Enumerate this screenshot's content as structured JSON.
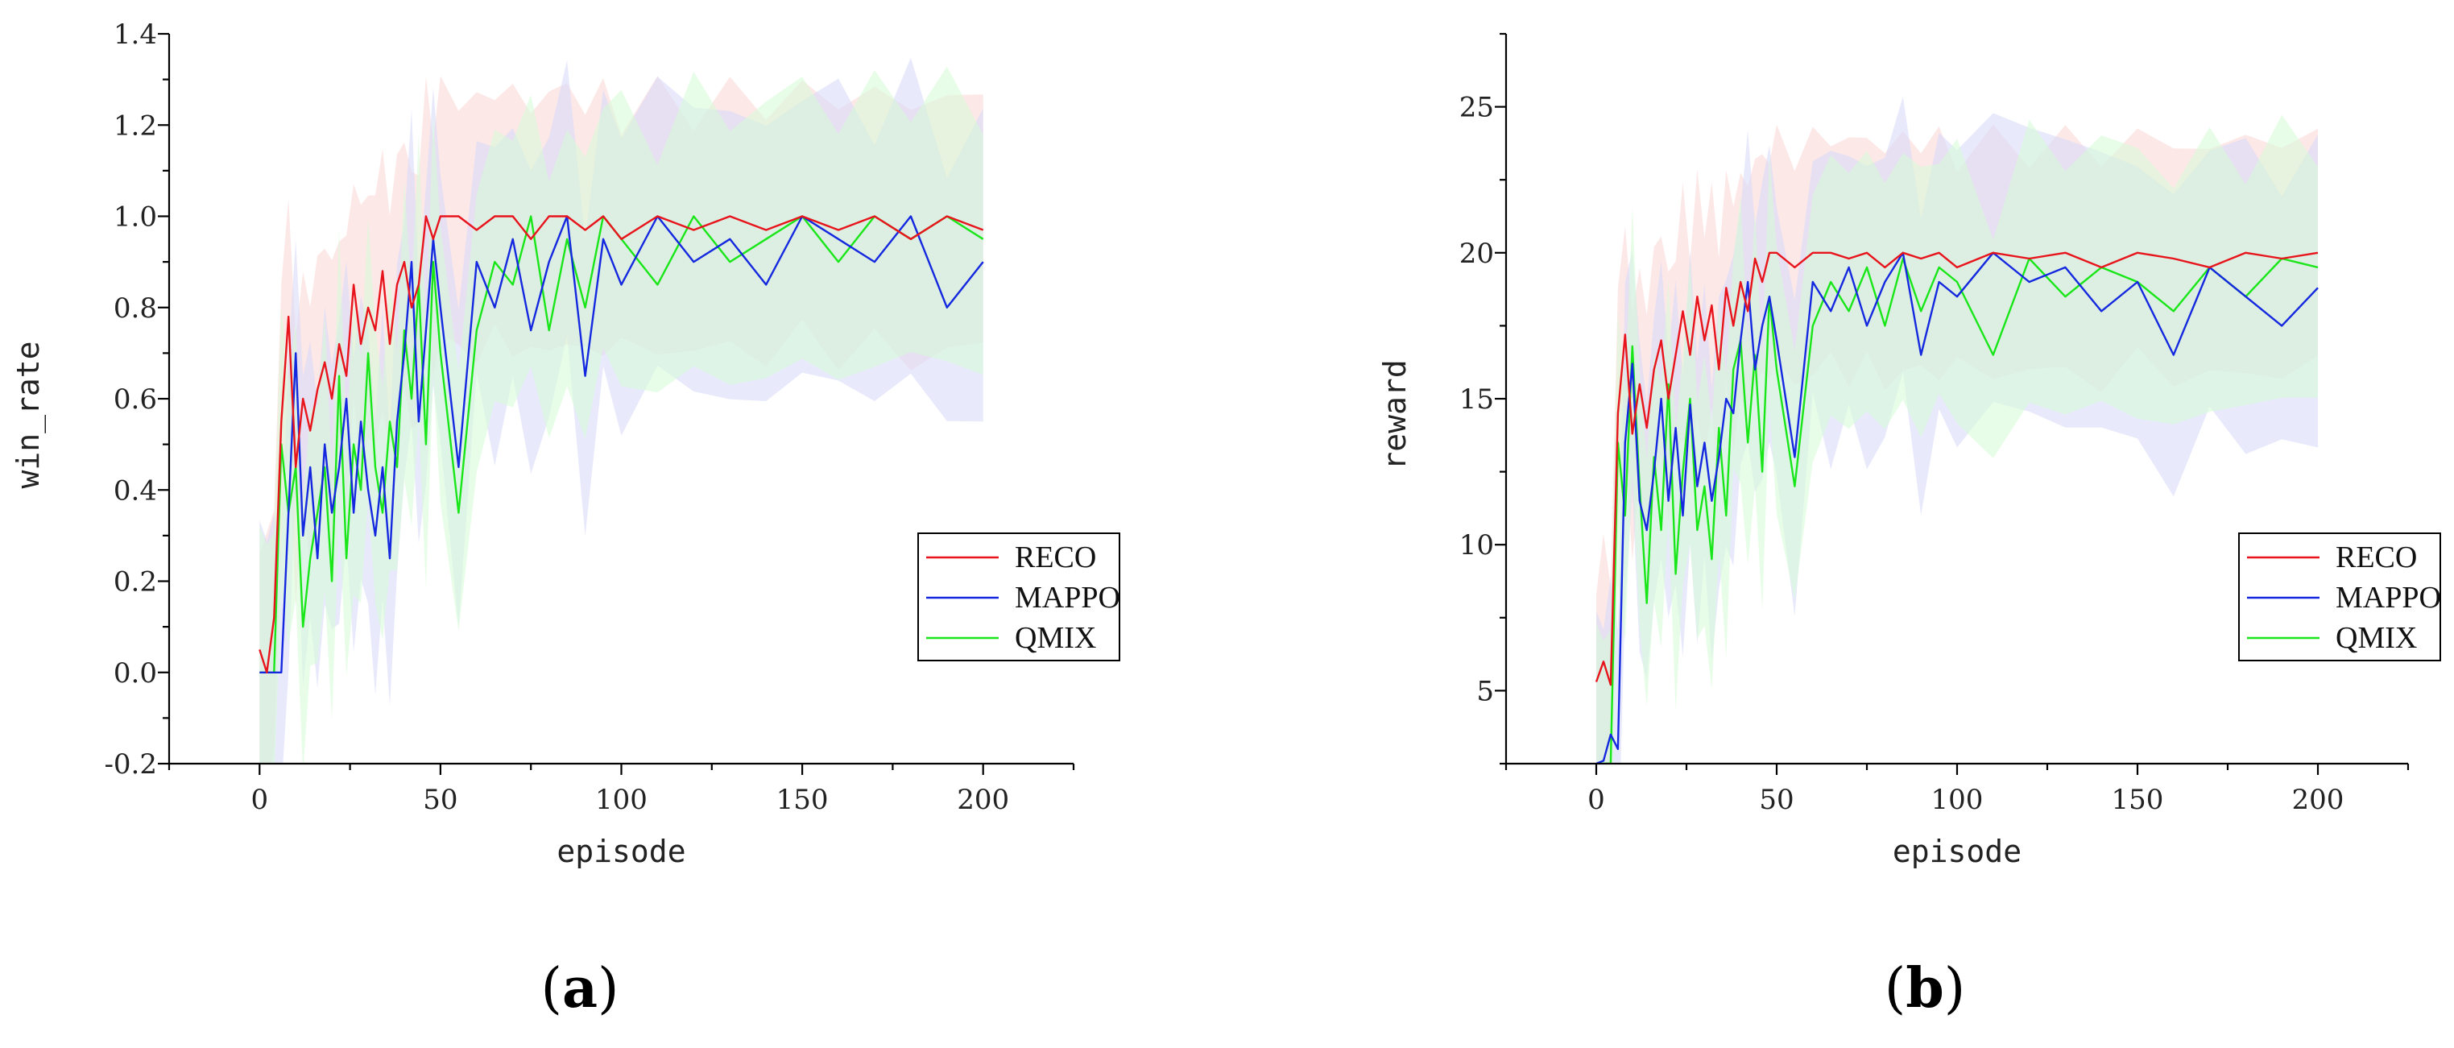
{
  "chart_data": [
    {
      "type": "line",
      "panel_label": "a",
      "xlabel": "episode",
      "ylabel": "win_rate",
      "xlim": [
        -25,
        225
      ],
      "ylim": [
        -0.2,
        1.4
      ],
      "xticks": [
        0,
        50,
        100,
        150,
        200
      ],
      "yticks": [
        -0.2,
        0.0,
        0.2,
        0.4,
        0.6,
        0.8,
        1.0,
        1.2,
        1.4
      ],
      "ytick_labels": [
        "-0.2",
        "0.0",
        "0.2",
        "0.4",
        "0.6",
        "0.8",
        "1.0",
        "1.2",
        "1.4"
      ],
      "legend_position": "center-right",
      "shaded_bands": true,
      "x": [
        0,
        2,
        4,
        6,
        8,
        10,
        12,
        14,
        16,
        18,
        20,
        22,
        24,
        26,
        28,
        30,
        32,
        34,
        36,
        38,
        40,
        42,
        44,
        46,
        48,
        50,
        55,
        60,
        65,
        70,
        75,
        80,
        85,
        90,
        95,
        100,
        110,
        120,
        130,
        140,
        150,
        160,
        170,
        180,
        190,
        200
      ],
      "series": [
        {
          "name": "RECO",
          "color": "#e8141c",
          "values": [
            0.05,
            0.0,
            0.12,
            0.55,
            0.78,
            0.45,
            0.6,
            0.53,
            0.62,
            0.68,
            0.6,
            0.72,
            0.65,
            0.85,
            0.72,
            0.8,
            0.75,
            0.88,
            0.72,
            0.85,
            0.9,
            0.8,
            0.85,
            1.0,
            0.95,
            1.0,
            1.0,
            0.97,
            1.0,
            1.0,
            0.95,
            1.0,
            1.0,
            0.97,
            1.0,
            0.95,
            1.0,
            0.97,
            1.0,
            0.97,
            1.0,
            0.97,
            1.0,
            0.95,
            1.0,
            0.97
          ]
        },
        {
          "name": "MAPPO",
          "color": "#1428e0",
          "values": [
            0.0,
            0.0,
            0.0,
            0.0,
            0.35,
            0.7,
            0.3,
            0.45,
            0.25,
            0.5,
            0.35,
            0.45,
            0.6,
            0.35,
            0.55,
            0.4,
            0.3,
            0.45,
            0.25,
            0.55,
            0.7,
            0.9,
            0.55,
            0.75,
            0.95,
            0.8,
            0.45,
            0.9,
            0.8,
            0.95,
            0.75,
            0.9,
            1.0,
            0.65,
            0.95,
            0.85,
            1.0,
            0.9,
            0.95,
            0.85,
            1.0,
            0.95,
            0.9,
            1.0,
            0.8,
            0.9
          ]
        },
        {
          "name": "QMIX",
          "color": "#19e619",
          "values": [
            0.0,
            0.0,
            0.0,
            0.5,
            0.35,
            0.45,
            0.1,
            0.25,
            0.35,
            0.45,
            0.2,
            0.65,
            0.25,
            0.5,
            0.4,
            0.7,
            0.45,
            0.35,
            0.55,
            0.45,
            0.75,
            0.6,
            0.85,
            0.5,
            0.9,
            0.7,
            0.35,
            0.75,
            0.9,
            0.85,
            1.0,
            0.75,
            0.95,
            0.8,
            1.0,
            0.95,
            0.85,
            1.0,
            0.9,
            0.95,
            1.0,
            0.9,
            1.0,
            0.95,
            1.0,
            0.95
          ]
        }
      ]
    },
    {
      "type": "line",
      "panel_label": "b",
      "xlabel": "episode",
      "ylabel": "reward",
      "xlim": [
        -25,
        225
      ],
      "ylim": [
        2.5,
        27.5
      ],
      "xticks": [
        0,
        50,
        100,
        150,
        200
      ],
      "yticks": [
        5,
        10,
        15,
        20,
        25
      ],
      "ytick_labels": [
        "5",
        "10",
        "15",
        "20",
        "25"
      ],
      "legend_position": "center-right",
      "shaded_bands": true,
      "x": [
        0,
        2,
        4,
        6,
        8,
        10,
        12,
        14,
        16,
        18,
        20,
        22,
        24,
        26,
        28,
        30,
        32,
        34,
        36,
        38,
        40,
        42,
        44,
        46,
        48,
        50,
        55,
        60,
        65,
        70,
        75,
        80,
        85,
        90,
        95,
        100,
        110,
        120,
        130,
        140,
        150,
        160,
        170,
        180,
        190,
        200
      ],
      "series": [
        {
          "name": "RECO",
          "color": "#e8141c",
          "values": [
            5.3,
            6.0,
            5.2,
            14.5,
            17.2,
            13.8,
            15.5,
            14.0,
            16.0,
            17.0,
            15.0,
            16.5,
            18.0,
            16.5,
            18.5,
            17.0,
            18.2,
            16.0,
            18.8,
            17.5,
            19.0,
            18.0,
            19.8,
            19.0,
            20.0,
            20.0,
            19.5,
            20.0,
            20.0,
            19.8,
            20.0,
            19.5,
            20.0,
            19.8,
            20.0,
            19.5,
            20.0,
            19.8,
            20.0,
            19.5,
            20.0,
            19.8,
            19.5,
            20.0,
            19.8,
            20.0
          ]
        },
        {
          "name": "MAPPO",
          "color": "#1428e0",
          "values": [
            2.5,
            2.6,
            3.5,
            3.0,
            13.5,
            16.2,
            11.5,
            10.5,
            12.5,
            15.0,
            11.5,
            14.0,
            11.0,
            14.8,
            12.0,
            13.5,
            11.5,
            13.0,
            15.0,
            14.5,
            17.0,
            19.0,
            16.0,
            17.5,
            18.5,
            17.0,
            13.0,
            19.0,
            18.0,
            19.5,
            17.5,
            19.0,
            20.0,
            16.5,
            19.0,
            18.5,
            20.0,
            19.0,
            19.5,
            18.0,
            19.0,
            16.5,
            19.5,
            18.5,
            17.5,
            18.8
          ]
        },
        {
          "name": "QMIX",
          "color": "#19e619",
          "values": [
            2.5,
            2.5,
            2.5,
            13.5,
            11.0,
            16.8,
            12.0,
            8.0,
            13.0,
            10.5,
            15.5,
            9.0,
            12.5,
            15.0,
            10.5,
            12.0,
            9.5,
            14.0,
            11.0,
            16.0,
            17.0,
            13.5,
            16.5,
            12.5,
            18.5,
            16.0,
            12.0,
            17.5,
            19.0,
            18.0,
            19.5,
            17.5,
            19.8,
            18.0,
            19.5,
            19.0,
            16.5,
            19.8,
            18.5,
            19.5,
            19.0,
            18.0,
            19.5,
            18.5,
            19.8,
            19.5
          ]
        }
      ]
    }
  ]
}
